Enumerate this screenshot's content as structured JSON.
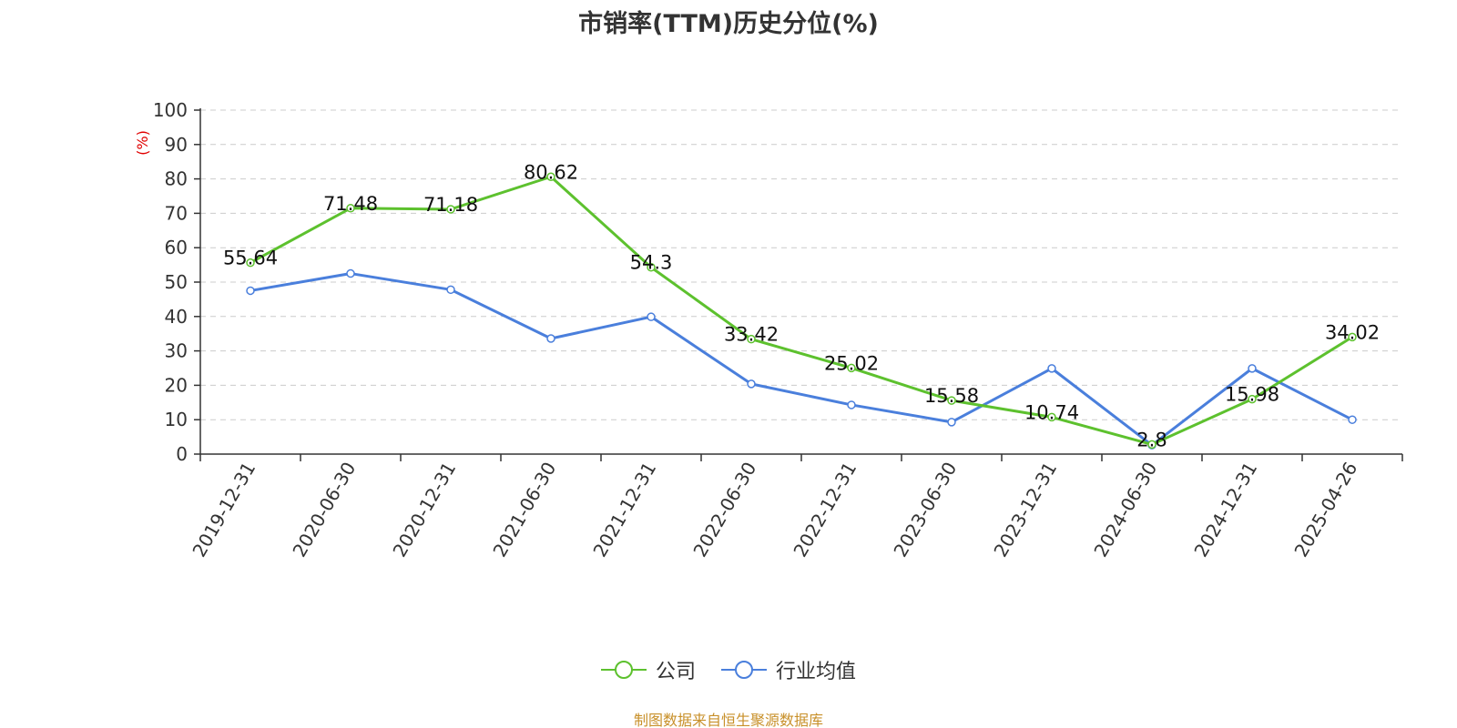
{
  "chart_data": {
    "type": "line",
    "title": "市销率(TTM)历史分位(%)",
    "ylabel": "(%)",
    "ylim": [
      0,
      100
    ],
    "yticks": [
      0,
      10,
      20,
      30,
      40,
      50,
      60,
      70,
      80,
      90,
      100
    ],
    "grid": true,
    "legend_position": "bottom",
    "categories": [
      "2019-12-31",
      "2020-06-30",
      "2020-12-31",
      "2021-06-30",
      "2021-12-31",
      "2022-06-30",
      "2022-12-31",
      "2023-06-30",
      "2023-12-31",
      "2024-06-30",
      "2024-12-31",
      "2025-04-26"
    ],
    "series": [
      {
        "name": "公司",
        "color": "#5dc12e",
        "values": [
          55.64,
          71.48,
          71.18,
          80.62,
          54.3,
          33.42,
          25.02,
          15.58,
          10.74,
          2.8,
          15.98,
          34.02
        ],
        "labels": [
          "55.64",
          "71.48",
          "71.18",
          "80.62",
          "54.3",
          "33.42",
          "25.02",
          "15.58",
          "10.74",
          "2.8",
          "15.98",
          "34.02"
        ]
      },
      {
        "name": "行业均值",
        "color": "#4a7fdc",
        "values": [
          47.5,
          52.5,
          47.8,
          33.6,
          39.9,
          20.4,
          14.3,
          9.3,
          24.9,
          2.6,
          24.9,
          10
        ]
      }
    ]
  },
  "source_note": "制图数据来自恒生聚源数据库"
}
